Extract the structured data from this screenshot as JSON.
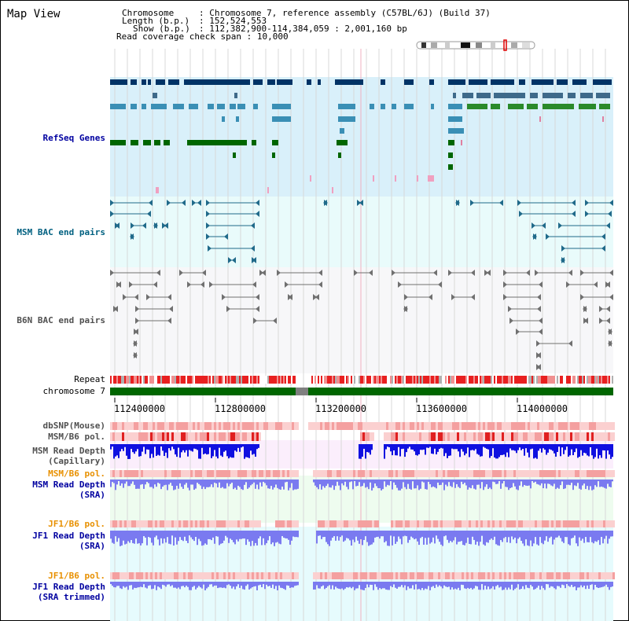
{
  "header": {
    "title": "Map View",
    "chromosome_label": "Chromosome",
    "chromosome_value": "Chromosome 7, reference assembly (C57BL/6J) (Build 37)",
    "length_label": "Length (b.p.)",
    "length_value": "152,524,553",
    "show_label": "Show (b.p.)",
    "show_value": "112,382,900-114,384,059 : 2,001,160 bp",
    "coverage_label": "Read coverage check span",
    "coverage_value": "10,000"
  },
  "tracks": {
    "refseq": "RefSeq Genes",
    "msm_bac": "MSM BAC end pairs",
    "b6n_bac": "B6N BAC end pairs",
    "repeat": "Repeat",
    "chromosome": "chromosome 7",
    "dbsnp": "dbSNP(Mouse)",
    "msm_b6_pol_1": "MSM/B6 pol.",
    "msm_depth_cap_1": "MSM Read Depth",
    "msm_depth_cap_2": "(Capillary)",
    "msm_b6_pol_2": "MSM/B6 pol.",
    "msm_depth_sra_1": "MSM Read Depth",
    "msm_depth_sra_2": "(SRA)",
    "jf1_b6_pol_1": "JF1/B6 pol.",
    "jf1_depth_sra_1": "JF1 Read Depth",
    "jf1_depth_sra_2": "(SRA)",
    "jf1_b6_pol_2": "JF1/B6 pol.",
    "jf1_depth_trim_1": "JF1 Read Depth",
    "jf1_depth_trim_2": "(SRA trimmed)"
  },
  "axis": {
    "ticks": [
      "112400000",
      "112800000",
      "113200000",
      "113600000",
      "114000000"
    ]
  },
  "colors": {
    "refseq_bg": "#d9f0fa",
    "msm_bac_bg": "#e9fbfb",
    "b6n_bac_bg": "#f7f7f9",
    "gene_navy": "#003366",
    "gene_steel": "#3a8fb5",
    "gene_green": "#006600",
    "chromosome_bar": "#006600",
    "snp_red": "#e02020",
    "depth_blue": "#1010e0",
    "depth_lavender": "#7a7af0"
  }
}
